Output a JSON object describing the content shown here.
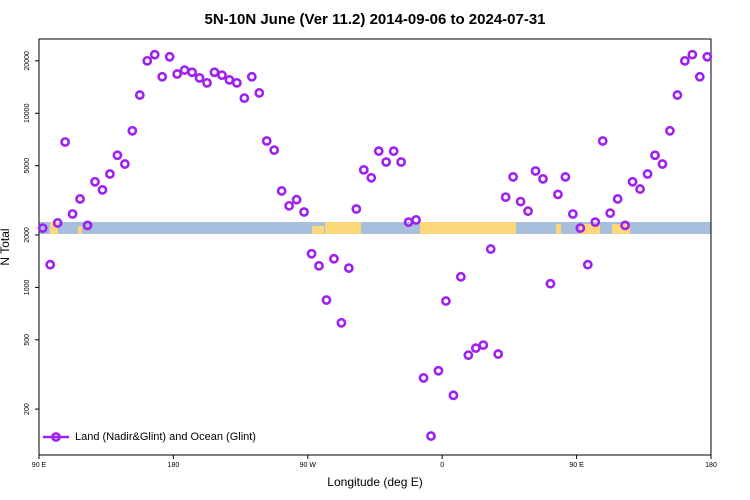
{
  "chart_data": {
    "type": "scatter",
    "title": "5N-10N June (Ver 11.2)   2014-09-06 to 2024-07-31",
    "x_label": "Longitude (deg E)",
    "y_label": "N Total",
    "log_y": true,
    "legend": "bottom-left",
    "xlim": [
      90,
      540
    ],
    "ylim": [
      109,
      26700
    ],
    "xticks": [
      {
        "value": 90,
        "label": "90 E"
      },
      {
        "value": 180,
        "label": "180"
      },
      {
        "value": 270,
        "label": "90 W"
      },
      {
        "value": 360,
        "label": "0"
      },
      {
        "value": 450,
        "label": "90 E"
      },
      {
        "value": 540,
        "label": "180"
      }
    ],
    "yticks": [
      200,
      500,
      1000,
      2000,
      5000,
      10000,
      20000
    ],
    "x": [
      92.5,
      97.5,
      102.5,
      107.5,
      112.5,
      117.5,
      122.5,
      127.5,
      132.5,
      137.5,
      142.5,
      147.5,
      152.5,
      157.5,
      162.5,
      167.5,
      172.5,
      177.5,
      182.5,
      187.5,
      192.5,
      197.5,
      202.5,
      207.5,
      212.5,
      217.5,
      222.5,
      227.5,
      232.5,
      237.5,
      242.5,
      247.5,
      252.5,
      257.5,
      262.5,
      267.5,
      272.5,
      277.5,
      282.5,
      287.5,
      292.5,
      297.5,
      302.5,
      307.5,
      312.5,
      317.5,
      322.5,
      327.5,
      332.5,
      337.5,
      342.5,
      347.5,
      352.5,
      357.5,
      362.5,
      367.5,
      372.5,
      377.5,
      382.5,
      387.5,
      392.5,
      397.5,
      402.5,
      407.5,
      412.5,
      417.5,
      422.5,
      427.5,
      432.5,
      437.5,
      442.5,
      447.5,
      452.5,
      457.5,
      462.5,
      467.5,
      472.5,
      477.5,
      482.5,
      487.5,
      492.5,
      497.5,
      502.5,
      507.5,
      512.5,
      517.5,
      522.5,
      527.5,
      532.5,
      537.5
    ],
    "series": [
      {
        "name": "Land (Nadir&Glint) and Ocean (Glint)",
        "color": "#a020f0",
        "values": [
          2190,
          1350,
          2345,
          6840,
          2640,
          3220,
          2270,
          4040,
          3630,
          4480,
          5740,
          5110,
          7930,
          12720,
          20000,
          21700,
          16200,
          21100,
          16800,
          17700,
          17200,
          15950,
          14950,
          17200,
          16550,
          15550,
          14950,
          12220,
          16200,
          13080,
          6930,
          6140,
          3580,
          2940,
          3190,
          2710,
          1560,
          1330,
          846,
          1460,
          626,
          1290,
          2820,
          4730,
          4260,
          6060,
          5250,
          6060,
          5250,
          2370,
          2440,
          302,
          140,
          332,
          835,
          240,
          1150,
          408,
          448,
          466,
          1660,
          414,
          3300,
          4310,
          3110,
          2740,
          4660,
          4200,
          1050,
          3420,
          4310,
          2640,
          2190,
          1350,
          2370,
          6930,
          2670,
          3220,
          2270,
          4040,
          3670,
          4480,
          5740,
          5110,
          7930,
          12720,
          20000,
          21700,
          16200,
          21100
        ]
      }
    ]
  }
}
